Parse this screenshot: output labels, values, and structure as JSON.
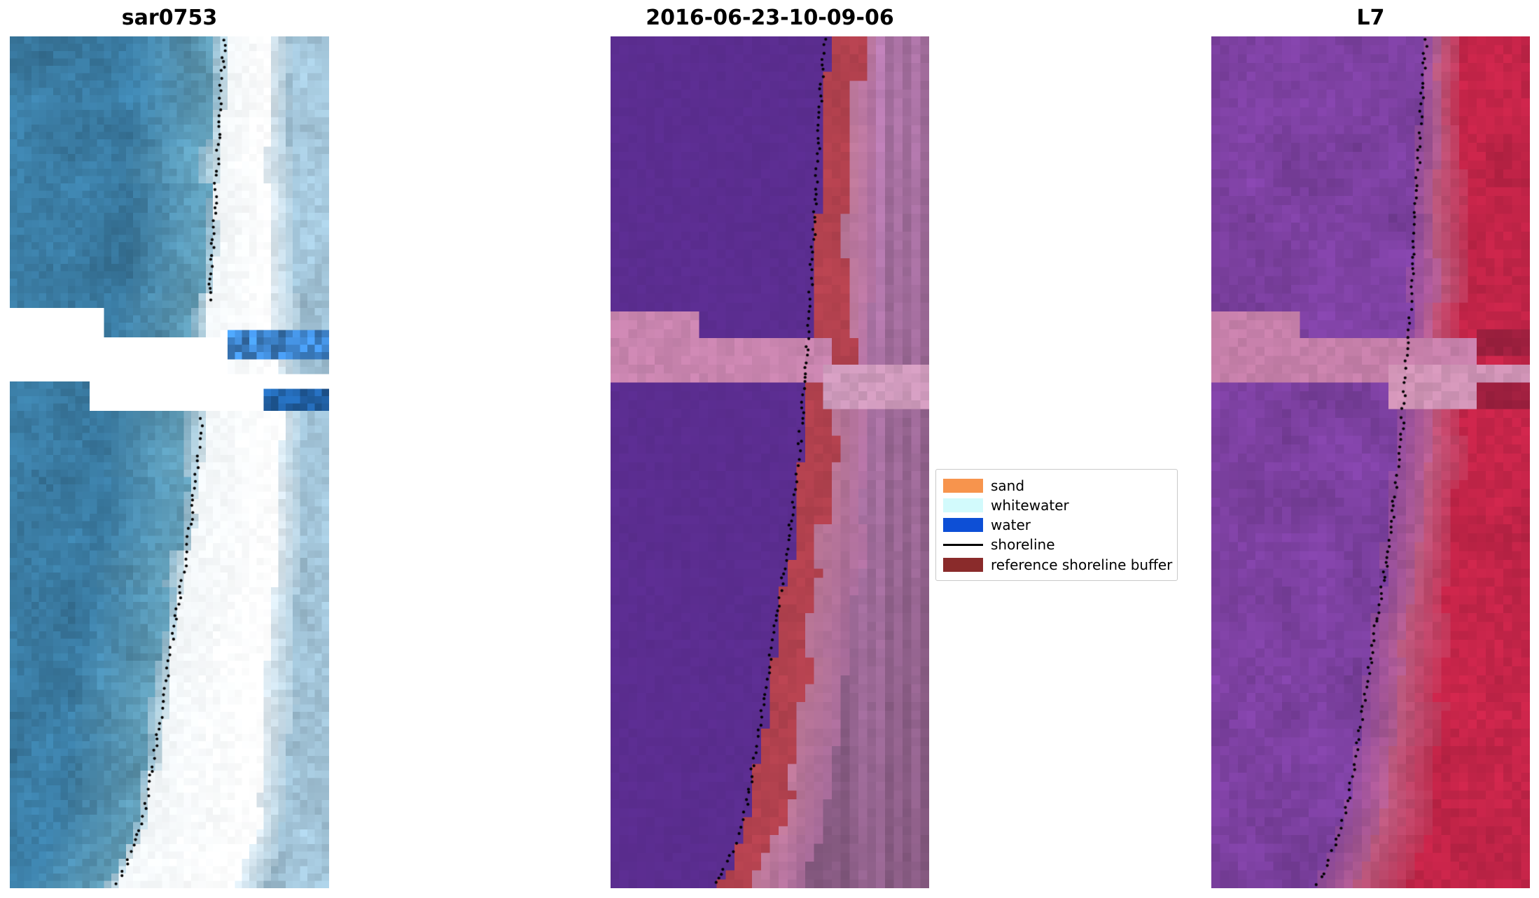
{
  "figure": {
    "background": "#ffffff",
    "panels": [
      {
        "title": "sar0753"
      },
      {
        "title": "2016-06-23-10-09-06"
      },
      {
        "title": "L7"
      }
    ],
    "legend": {
      "entries": [
        {
          "key": "sand",
          "label": "sand",
          "type": "patch",
          "color": "#f7944d"
        },
        {
          "key": "whitewater",
          "label": "whitewater",
          "type": "patch",
          "color": "#d2fafc"
        },
        {
          "key": "water",
          "label": "water",
          "type": "patch",
          "color": "#0d4fd6"
        },
        {
          "key": "shoreline",
          "label": "shoreline",
          "type": "line",
          "color": "#000000"
        },
        {
          "key": "reference-shoreline-buffer",
          "label": "reference shoreline buffer",
          "type": "patch",
          "color": "#8a2b2b"
        }
      ]
    }
  },
  "chart_data": {
    "type": "image",
    "description": "Shoreline-detection figure with three co-registered satellite image panels (SAR image, classified image, Landsat 7 composite). A dotted black line marks the mapped shoreline; stair-stepped no-data gap stripes (Landsat 7 SLC-off) cross each panel near one third from the top. Legend identifies sand, whitewater, water classes, the shoreline and the reference shoreline buffer.",
    "axes": "off",
    "shoreline": [
      [
        0.675,
        0.0
      ],
      [
        0.662,
        0.06
      ],
      [
        0.654,
        0.12
      ],
      [
        0.645,
        0.18
      ],
      [
        0.636,
        0.24
      ],
      [
        0.627,
        0.3
      ],
      [
        0.617,
        0.36
      ],
      [
        0.607,
        0.42
      ],
      [
        0.596,
        0.47
      ],
      [
        0.583,
        0.52
      ],
      [
        0.566,
        0.57
      ],
      [
        0.549,
        0.62
      ],
      [
        0.53,
        0.66
      ],
      [
        0.513,
        0.7
      ],
      [
        0.497,
        0.74
      ],
      [
        0.48,
        0.78
      ],
      [
        0.463,
        0.82
      ],
      [
        0.446,
        0.86
      ],
      [
        0.428,
        0.9
      ],
      [
        0.405,
        0.93
      ],
      [
        0.378,
        0.96
      ],
      [
        0.348,
        0.985
      ],
      [
        0.325,
        1.0
      ]
    ],
    "panels": [
      {
        "title": "sar0753",
        "dot_breaks": [
          [
            0.315,
            0.445
          ]
        ],
        "render": {
          "cols": 44,
          "rows": 116,
          "seed": 7,
          "bands": [
            {
              "edge": [
                -0.04,
                0.01
              ],
              "jitter": 0.02,
              "colorA": "#3a7ba2",
              "colorB": "#63a0ba",
              "noise": 0.17,
              "blob": 0.55
            },
            {
              "edge": [
                0.005,
                0.005
              ],
              "jitter": 0.012,
              "colorA": "#85b2c8",
              "colorB": "#d2e4ec",
              "noise": 0.09
            },
            {
              "edge": [
                0.13,
                0.25
              ],
              "jitter": 0.015,
              "colorA": "#f3f7f9",
              "colorB": "#ffffff",
              "noise": 0.04
            },
            {
              "edge": [
                0.19,
                0.28
              ],
              "jitter": 0.012,
              "colorA": "#e0ebf2",
              "colorB": "#adcbdc",
              "noise": 0.08
            },
            {
              "edge": [
                9,
                0
              ],
              "colorA": "#a2c4d8",
              "colorB": "#a2c4d8",
              "noise": 0.15,
              "blob": 0.55
            }
          ],
          "gaps": [
            {
              "x": 0,
              "y": 0.318,
              "w": 0.285,
              "h": 0.042,
              "color": "#ffffff",
              "noise": 0
            },
            {
              "x": 0,
              "y": 0.355,
              "w": 0.69,
              "h": 0.047,
              "color": "#ffffff",
              "noise": 0
            },
            {
              "x": 0.26,
              "y": 0.397,
              "w": 0.74,
              "h": 0.04,
              "color": "#ffffff",
              "noise": 0
            },
            {
              "x": 0.69,
              "y": 0.348,
              "w": 0.31,
              "h": 0.03,
              "color": "#3f86cf",
              "noise": 0.28
            },
            {
              "x": 0.8,
              "y": 0.414,
              "w": 0.2,
              "h": 0.027,
              "color": "#2264ab",
              "noise": 0.22
            }
          ]
        }
      },
      {
        "title": "2016-06-23-10-09-06",
        "dot_breaks": [],
        "render": {
          "cols": 36,
          "rows": 96,
          "seed": 21,
          "bands": [
            {
              "edge": [
                0.013,
                0.0
              ],
              "jitter": 0.008,
              "colorA": "#5b2d90",
              "colorB": "#5b2d90",
              "noise": 0.04,
              "blob": 0.3
            },
            {
              "edge": [
                0.1,
                0.02
              ],
              "jitter": 0.028,
              "colorA": "#b2414e",
              "colorB": "#b2414e",
              "noise": 0.07,
              "blob": 0.4
            },
            {
              "edge": [
                0.175,
                0.09
              ],
              "jitter": 0.02,
              "colorA": "#c07a9b",
              "colorB": "#ad6f9f",
              "noise": 0.1,
              "streak": 0.55
            },
            {
              "edge": [
                9,
                0
              ],
              "colorA": "#a56f9f",
              "colorB": "#a56f9f",
              "noise": 0.16,
              "streak": 0.65,
              "shadeY": [
                1.06,
                0.85
              ]
            }
          ],
          "gaps": [
            {
              "x": 0,
              "y": 0.318,
              "w": 0.275,
              "h": 0.042,
              "color": "#c884ae",
              "noise": 0.05
            },
            {
              "x": 0,
              "y": 0.358,
              "w": 0.695,
              "h": 0.047,
              "color": "#c884ae",
              "noise": 0.05
            },
            {
              "x": 0.655,
              "y": 0.385,
              "w": 0.345,
              "h": 0.05,
              "color": "#cf9abc",
              "noise": 0.06
            },
            {
              "x": 0.695,
              "y": 0.358,
              "w": 0.07,
              "h": 0.027,
              "color": "#b2414e",
              "noise": 0.05
            }
          ]
        }
      },
      {
        "title": "L7",
        "dot_breaks": [],
        "render": {
          "cols": 36,
          "rows": 96,
          "seed": 99,
          "bands": [
            {
              "edge": [
                -0.005,
                0.0
              ],
              "jitter": 0.012,
              "colorA": "#7c40a0",
              "colorB": "#7c40a0",
              "noise": 0.14,
              "blob": 0.6
            },
            {
              "edge": [
                0.055,
                0.06
              ],
              "jitter": 0.02,
              "colorA": "#8f4b9e",
              "colorB": "#b25c8e",
              "noise": 0.1,
              "blob": 0.5
            },
            {
              "edge": [
                0.115,
                0.16
              ],
              "jitter": 0.02,
              "colorA": "#bb5b80",
              "colorB": "#c23355",
              "noise": 0.08,
              "blob": 0.4
            },
            {
              "edge": [
                9,
                0
              ],
              "colorA": "#c32448",
              "colorB": "#c32448",
              "noise": 0.11,
              "blob": 0.45
            }
          ],
          "gaps": [
            {
              "x": 0,
              "y": 0.318,
              "w": 0.275,
              "h": 0.042,
              "color": "#c57fa9",
              "noise": 0.05
            },
            {
              "x": 0,
              "y": 0.358,
              "w": 0.83,
              "h": 0.047,
              "color": "#c57fa9",
              "noise": 0.05
            },
            {
              "x": 0.56,
              "y": 0.385,
              "w": 0.44,
              "h": 0.05,
              "color": "#cf93b5",
              "noise": 0.06
            },
            {
              "x": 0.83,
              "y": 0.343,
              "w": 0.17,
              "h": 0.028,
              "color": "#9c1f3e",
              "noise": 0.06
            },
            {
              "x": 0.83,
              "y": 0.402,
              "w": 0.17,
              "h": 0.036,
              "color": "#9c1f3e",
              "noise": 0.06
            }
          ]
        }
      }
    ]
  }
}
